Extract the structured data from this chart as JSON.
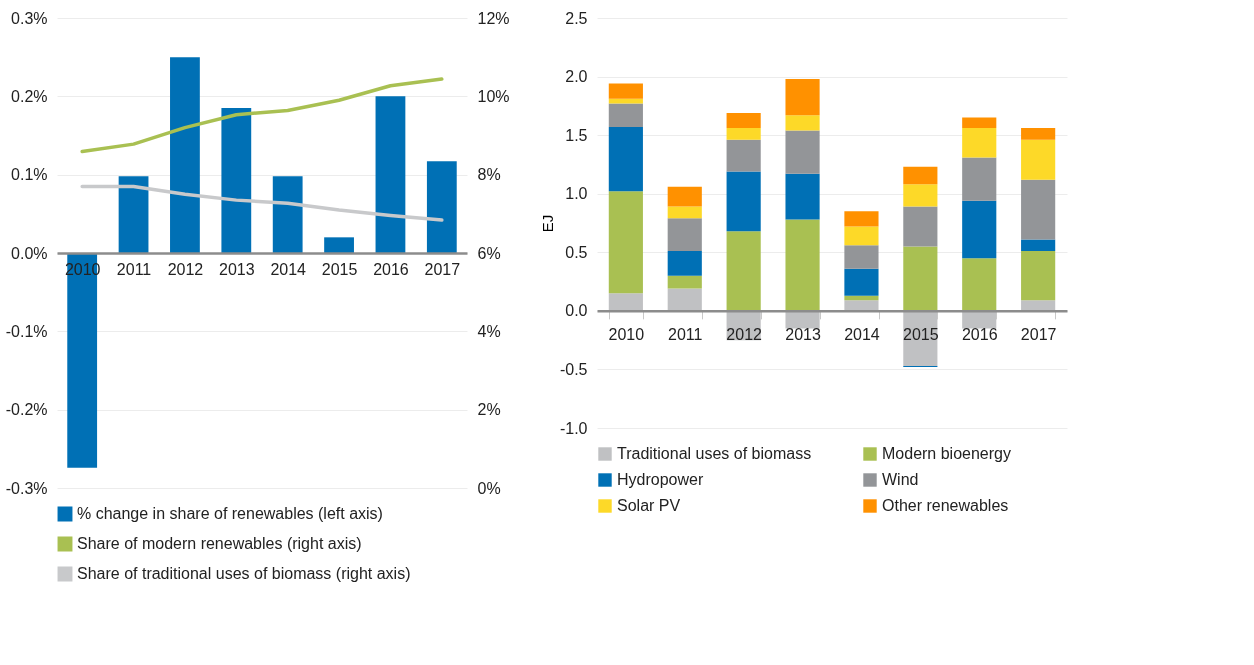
{
  "chart_data": [
    {
      "type": "bar",
      "categories": [
        "2010",
        "2011",
        "2012",
        "2013",
        "2014",
        "2015",
        "2016",
        "2017"
      ],
      "series": [
        {
          "name": "% change in share of renewables (left axis)",
          "color": "#0070b5",
          "values": [
            -0.274,
            0.098,
            0.25,
            0.185,
            0.098,
            0.02,
            0.2,
            0.117
          ]
        },
        {
          "name": "Share of modern renewables (right axis)",
          "type": "line",
          "axis": "y2",
          "color": "#a9c052",
          "values": [
            8.59,
            8.78,
            9.2,
            9.53,
            9.64,
            9.9,
            10.27,
            10.44
          ]
        },
        {
          "name": "Share of traditional uses of biomass (right axis)",
          "type": "line",
          "axis": "y2",
          "color": "#c8c9cb",
          "values": [
            7.7,
            7.7,
            7.5,
            7.35,
            7.27,
            7.1,
            6.96,
            6.84
          ]
        }
      ],
      "ylim": [
        -0.3,
        0.3
      ],
      "yticks": [
        {
          "value": -0.3,
          "label": "-0.3%"
        },
        {
          "value": -0.2,
          "label": "-0.2%"
        },
        {
          "value": -0.1,
          "label": "-0.1%"
        },
        {
          "value": 0,
          "label": "0.0%"
        },
        {
          "value": 0.1,
          "label": "0.1%"
        },
        {
          "value": 0.2,
          "label": "0.2%"
        },
        {
          "value": 0.3,
          "label": "0.3%"
        }
      ],
      "y2lim": [
        0,
        12
      ],
      "y2ticks": [
        {
          "value": 0,
          "label": "0%"
        },
        {
          "value": 2,
          "label": "2%"
        },
        {
          "value": 4,
          "label": "4%"
        },
        {
          "value": 6,
          "label": "6%"
        },
        {
          "value": 8,
          "label": "8%"
        },
        {
          "value": 10,
          "label": "10%"
        },
        {
          "value": 12,
          "label": "12%"
        }
      ],
      "grid": "y",
      "legend": "bottom",
      "line_style": "solid"
    },
    {
      "type": "bar",
      "stacked": true,
      "ylabel": "EJ",
      "categories": [
        "2010",
        "2011",
        "2012",
        "2013",
        "2014",
        "2015",
        "2016",
        "2017"
      ],
      "series": [
        {
          "name": "Traditional uses of biomass",
          "color": "#c0c1c3",
          "values": [
            0.15,
            0.19,
            -0.25,
            -0.15,
            0.09,
            -0.47,
            -0.15,
            0.09
          ]
        },
        {
          "name": "Modern bioenergy",
          "color": "#a9c052",
          "values": [
            0.87,
            0.11,
            0.68,
            0.78,
            0.04,
            0.55,
            0.45,
            0.42
          ]
        },
        {
          "name": "Hydropower",
          "color": "#0070b5",
          "values": [
            0.55,
            0.21,
            0.51,
            0.39,
            0.23,
            -0.01,
            0.49,
            0.1
          ]
        },
        {
          "name": "Wind",
          "color": "#939598",
          "values": [
            0.2,
            0.28,
            0.27,
            0.37,
            0.2,
            0.34,
            0.37,
            0.51
          ]
        },
        {
          "name": "Solar PV",
          "color": "#fdd928",
          "values": [
            0.04,
            0.1,
            0.1,
            0.13,
            0.16,
            0.19,
            0.25,
            0.34
          ]
        },
        {
          "name": "Other renewables",
          "color": "#ff9100",
          "values": [
            0.13,
            0.17,
            0.13,
            0.31,
            0.13,
            0.15,
            0.09,
            0.1
          ]
        }
      ],
      "ylim": [
        -1,
        2.5
      ],
      "yticks": [
        {
          "value": -1,
          "label": "-1.0"
        },
        -0.5,
        {
          "value": 0,
          "label": "0.0"
        },
        0.5,
        {
          "value": 1,
          "label": "1.0"
        },
        1.5,
        {
          "value": 2,
          "label": "2.0"
        },
        2.5
      ],
      "grid": "y",
      "legend": "bottom"
    }
  ]
}
